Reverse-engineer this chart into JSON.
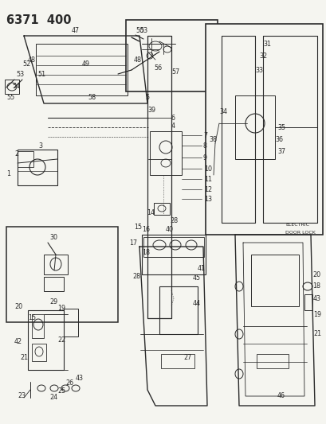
{
  "title": "6371 400",
  "bg_color": "#f5f5f0",
  "fig_width": 4.1,
  "fig_height": 5.33,
  "dpi": 100,
  "lc": "#2a2a2a",
  "lc_light": "#555555",
  "label_fs": 5.8,
  "title_fs": 10.5
}
